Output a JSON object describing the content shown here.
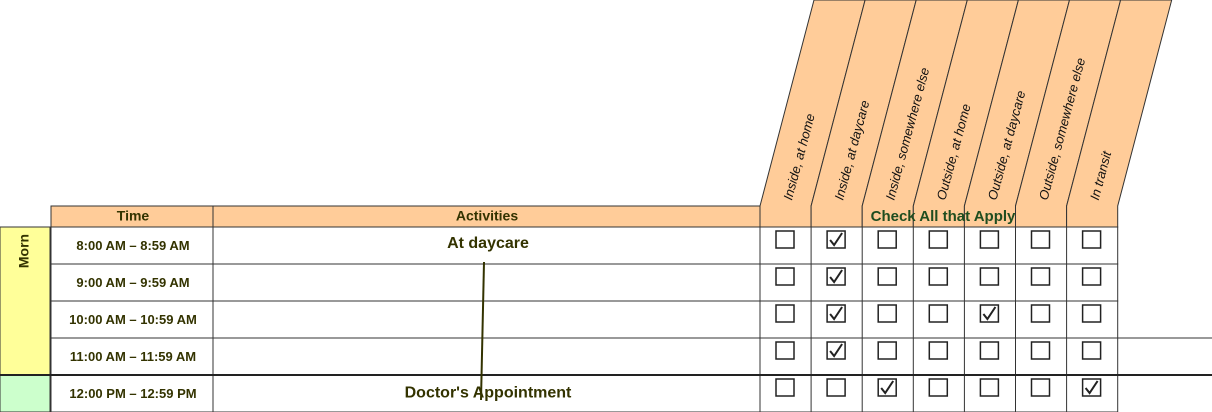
{
  "columns": {
    "time": "Time",
    "activities": "Activities",
    "check_all": "Check All that Apply"
  },
  "locations": [
    "Inside, at home",
    "Inside, at daycare",
    "Inside, somewhere else",
    "Outside, at home",
    "Outside, at daycare",
    "Outside, somewhere else",
    "In transit"
  ],
  "period": "Morn",
  "rows": [
    {
      "time": "8:00 AM – 8:59 AM",
      "activity": "At daycare",
      "checks": [
        false,
        true,
        false,
        false,
        false,
        false,
        false
      ]
    },
    {
      "time": "9:00 AM – 9:59 AM",
      "checks": [
        false,
        true,
        false,
        false,
        false,
        false,
        false
      ]
    },
    {
      "time": "10:00 AM – 10:59 AM",
      "checks": [
        false,
        true,
        false,
        false,
        true,
        false,
        false
      ]
    },
    {
      "time": "11:00 AM – 11:59 AM",
      "checks": [
        false,
        true,
        false,
        false,
        false,
        false,
        false
      ]
    },
    {
      "time": "12:00 PM – 12:59 PM",
      "activity": "Doctor's Appointment",
      "checks": [
        false,
        false,
        true,
        false,
        false,
        false,
        true
      ]
    }
  ]
}
